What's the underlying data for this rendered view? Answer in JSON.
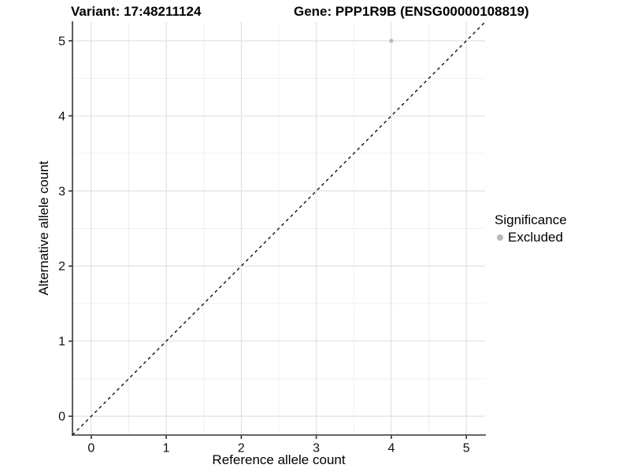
{
  "header": {
    "variant_title": "Variant: 17:48211124",
    "gene_title": "Gene: PPP1R9B (ENSG00000108819)"
  },
  "legend": {
    "title": "Significance",
    "items": [
      {
        "label": "Excluded",
        "color": "#b8b8b8"
      }
    ]
  },
  "chart_data": {
    "type": "scatter",
    "titles": [
      "Variant: 17:48211124",
      "Gene: PPP1R9B (ENSG00000108819)"
    ],
    "xlabel": "Reference allele count",
    "ylabel": "Alternative allele count",
    "xlim": [
      -0.25,
      5.25
    ],
    "ylim": [
      -0.25,
      5.25
    ],
    "x_ticks": [
      0,
      1,
      2,
      3,
      4,
      5
    ],
    "y_ticks": [
      0,
      1,
      2,
      3,
      4,
      5
    ],
    "x_minor_ticks": [
      0.5,
      1.5,
      2.5,
      3.5,
      4.5
    ],
    "y_minor_ticks": [
      0.5,
      1.5,
      2.5,
      3.5,
      4.5
    ],
    "grid": true,
    "legend_position": "right",
    "identity_line": {
      "style": "dashed",
      "x1": -0.25,
      "y1": -0.25,
      "x2": 5.25,
      "y2": 5.25,
      "color": "#000000"
    },
    "series": [
      {
        "name": "Excluded",
        "color": "#b8b8b8",
        "points": [
          {
            "x": 4,
            "y": 5
          }
        ]
      }
    ],
    "colors": {
      "grid_major": "#e1e1e1",
      "grid_minor": "#f0f0f0",
      "axis_line": "#333333",
      "tick_label": "#111111"
    }
  }
}
